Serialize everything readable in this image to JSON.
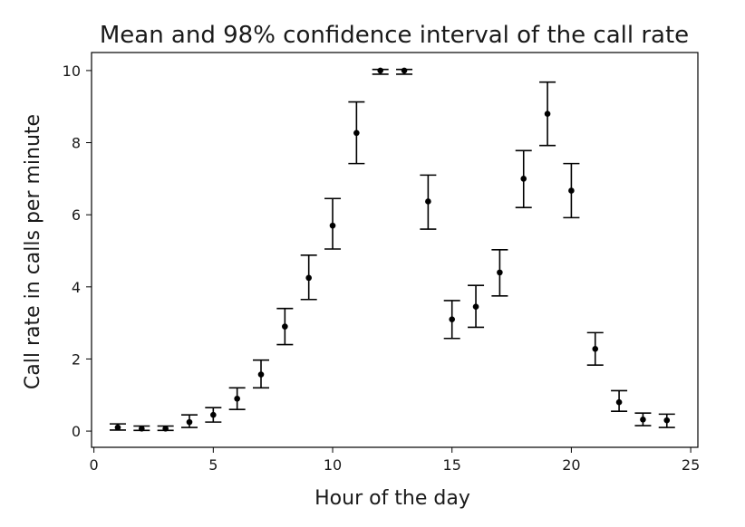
{
  "chart_data": {
    "type": "scatter",
    "title": "Mean and 98% confidence interval of the call rate",
    "xlabel": "Hour of the day",
    "ylabel": "Call rate in calls per minute",
    "xlim": [
      -0.1,
      25.3
    ],
    "ylim": [
      -0.45,
      10.5
    ],
    "xticks": [
      0,
      5,
      10,
      15,
      20,
      25
    ],
    "yticks": [
      0,
      2,
      4,
      6,
      8,
      10
    ],
    "grid": false,
    "marker_color": "#000000",
    "series": [
      {
        "points": [
          {
            "x": 1,
            "y": 0.1,
            "low": 0.03,
            "high": 0.2
          },
          {
            "x": 2,
            "y": 0.07,
            "low": 0.02,
            "high": 0.14
          },
          {
            "x": 3,
            "y": 0.07,
            "low": 0.02,
            "high": 0.14
          },
          {
            "x": 4,
            "y": 0.25,
            "low": 0.1,
            "high": 0.45
          },
          {
            "x": 5,
            "y": 0.45,
            "low": 0.25,
            "high": 0.65
          },
          {
            "x": 6,
            "y": 0.9,
            "low": 0.6,
            "high": 1.2
          },
          {
            "x": 7,
            "y": 1.57,
            "low": 1.2,
            "high": 1.97
          },
          {
            "x": 8,
            "y": 2.9,
            "low": 2.4,
            "high": 3.4
          },
          {
            "x": 9,
            "y": 4.25,
            "low": 3.65,
            "high": 4.88
          },
          {
            "x": 10,
            "y": 5.7,
            "low": 5.05,
            "high": 6.45
          },
          {
            "x": 11,
            "y": 8.27,
            "low": 7.42,
            "high": 9.13
          },
          {
            "x": 12,
            "y": 10.0,
            "low": 9.9,
            "high": 10.03
          },
          {
            "x": 13,
            "y": 10.0,
            "low": 9.9,
            "high": 10.03
          },
          {
            "x": 14,
            "y": 6.37,
            "low": 5.6,
            "high": 7.1
          },
          {
            "x": 15,
            "y": 3.1,
            "low": 2.57,
            "high": 3.62
          },
          {
            "x": 16,
            "y": 3.45,
            "low": 2.88,
            "high": 4.04
          },
          {
            "x": 17,
            "y": 4.4,
            "low": 3.75,
            "high": 5.03
          },
          {
            "x": 18,
            "y": 7.0,
            "low": 6.2,
            "high": 7.78
          },
          {
            "x": 19,
            "y": 8.8,
            "low": 7.92,
            "high": 9.68
          },
          {
            "x": 20,
            "y": 6.67,
            "low": 5.92,
            "high": 7.42
          },
          {
            "x": 21,
            "y": 2.28,
            "low": 1.83,
            "high": 2.73
          },
          {
            "x": 22,
            "y": 0.8,
            "low": 0.55,
            "high": 1.12
          },
          {
            "x": 23,
            "y": 0.32,
            "low": 0.15,
            "high": 0.5
          },
          {
            "x": 24,
            "y": 0.3,
            "low": 0.1,
            "high": 0.47
          }
        ]
      }
    ]
  }
}
